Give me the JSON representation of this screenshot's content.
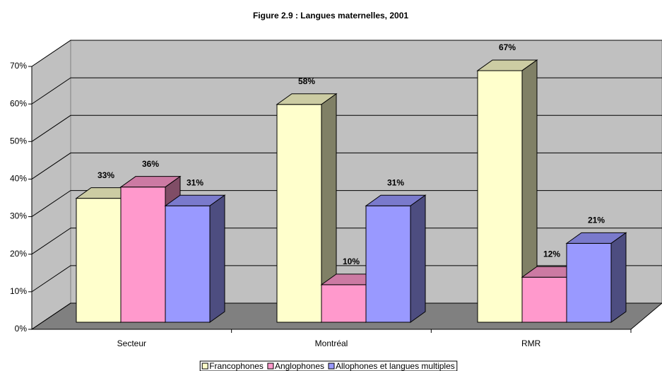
{
  "chart_data": {
    "type": "bar3d",
    "title": "Figure 2.9 : Langues maternelles, 2001",
    "categories": [
      "Secteur",
      "Montréal",
      "RMR"
    ],
    "series": [
      {
        "name": "Francophones",
        "color": "#ffffcc",
        "values": [
          33,
          58,
          67
        ],
        "value_labels": [
          "33%",
          "58%",
          "67%"
        ]
      },
      {
        "name": "Anglophones",
        "color": "#ff99cc",
        "values": [
          36,
          10,
          12
        ],
        "value_labels": [
          "36%",
          "10%",
          "12%"
        ]
      },
      {
        "name": "Allophones et langues multiples",
        "color": "#9999ff",
        "values": [
          31,
          31,
          21
        ],
        "value_labels": [
          "31%",
          "31%",
          "21%"
        ]
      }
    ],
    "ylim": [
      0,
      70
    ],
    "yticks": [
      {
        "value": 0,
        "label": "0%"
      },
      {
        "value": 10,
        "label": "10%"
      },
      {
        "value": 20,
        "label": "20%"
      },
      {
        "value": 30,
        "label": "30%"
      },
      {
        "value": 40,
        "label": "40%"
      },
      {
        "value": 50,
        "label": "50%"
      },
      {
        "value": 60,
        "label": "60%"
      },
      {
        "value": 70,
        "label": "70%"
      }
    ],
    "grid": true,
    "legend": "bottom"
  }
}
